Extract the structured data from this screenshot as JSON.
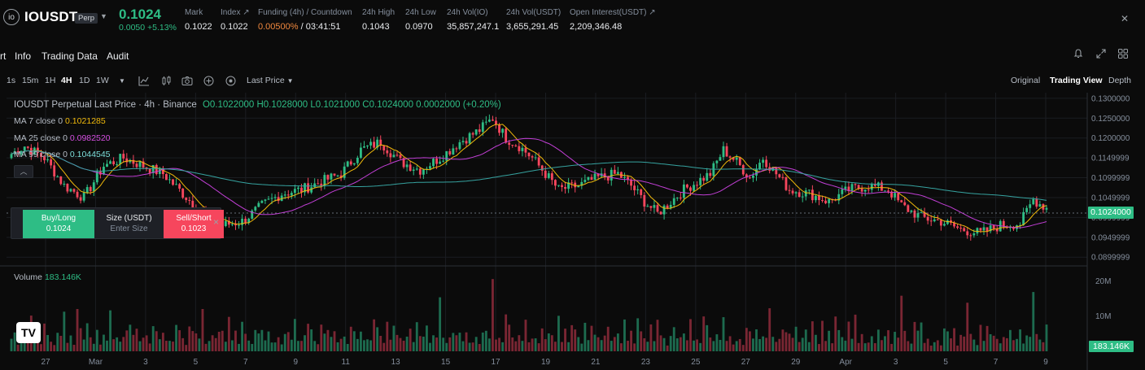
{
  "header": {
    "symbol": "IOUSDT",
    "badge": "Perp",
    "price": "0.1024",
    "change": "0.0050 +5.13%",
    "stats": [
      {
        "label": "Mark",
        "value": "0.1022"
      },
      {
        "label": "Index ↗",
        "value": "0.1022"
      },
      {
        "label": "Funding (4h) / Countdown",
        "value_rate": "0.00500%",
        "value_countdown": "/ 03:41:51"
      },
      {
        "label": "24h High",
        "value": "0.1043"
      },
      {
        "label": "24h Low",
        "value": "0.0970"
      },
      {
        "label": "24h Vol(IO)",
        "value": "35,857,247.1"
      },
      {
        "label": "24h Vol(USDT)",
        "value": "3,655,291.45"
      },
      {
        "label": "Open Interest(USDT) ↗",
        "value": "2,209,346.48"
      }
    ]
  },
  "tabs": [
    "rt",
    "Info",
    "Trading Data",
    "Audit"
  ],
  "toolbar": {
    "intervals": [
      "1s",
      "15m",
      "1H",
      "4H",
      "1D",
      "1W"
    ],
    "active_interval": "4H",
    "price_type": "Last Price",
    "views": [
      "Original",
      "Trading View",
      "Depth"
    ],
    "active_view": "Trading View"
  },
  "legend": {
    "title": "IOUSDT Perpetual Last Price · 4h · Binance",
    "ohlc": "O0.1022000 H0.1028000 L0.1021000 C0.1024000 0.0002000 (+0.20%)",
    "ma7_label": "MA 7 close 0",
    "ma7_value": "0.1021285",
    "ma25_label": "MA 25 close 0",
    "ma25_value": "0.0982520",
    "ma99_label": "MA 99 close 0",
    "ma99_value": "0.1044545",
    "volume_label": "Volume",
    "volume_value": "183.146K"
  },
  "order_panel": {
    "buy_label": "Buy/Long",
    "buy_price": "0.1024",
    "size_label": "Size (USDT)",
    "size_placeholder": "Enter Size",
    "sell_label": "Sell/Short",
    "sell_price": "0.1023",
    "close": "×"
  },
  "price_axis": [
    "0.1300000",
    "0.1250000",
    "0.1200000",
    "0.1149999",
    "0.1099999",
    "0.1049999",
    "0.0999999",
    "0.0949999",
    "0.0899999"
  ],
  "current_price_tag": "0.1024000",
  "volume_axis": [
    "20M",
    "10M"
  ],
  "volume_tag": "183.146K",
  "time_axis": [
    "27",
    "Mar",
    "3",
    "5",
    "7",
    "9",
    "11",
    "13",
    "15",
    "17",
    "19",
    "21",
    "23",
    "25",
    "27",
    "29",
    "Apr",
    "3",
    "5",
    "7",
    "9"
  ],
  "colors": {
    "up": "#2ebd85",
    "down": "#f6465d",
    "ma7": "#f0b90b",
    "ma25": "#c23fd6",
    "ma99": "#36a3a0"
  },
  "chart_data": {
    "type": "candlestick",
    "title": "IOUSDT Perpetual Last Price · 4h · Binance",
    "ylim": [
      0.088,
      0.131
    ],
    "anchors": [
      [
        0,
        0.116
      ],
      [
        4,
        0.118
      ],
      [
        10,
        0.115
      ],
      [
        16,
        0.108
      ],
      [
        22,
        0.105
      ],
      [
        28,
        0.113
      ],
      [
        34,
        0.115
      ],
      [
        40,
        0.113
      ],
      [
        46,
        0.111
      ],
      [
        52,
        0.106
      ],
      [
        58,
        0.101
      ],
      [
        64,
        0.098
      ],
      [
        70,
        0.099
      ],
      [
        76,
        0.103
      ],
      [
        82,
        0.106
      ],
      [
        88,
        0.107
      ],
      [
        94,
        0.109
      ],
      [
        100,
        0.111
      ],
      [
        106,
        0.117
      ],
      [
        112,
        0.119
      ],
      [
        118,
        0.114
      ],
      [
        124,
        0.112
      ],
      [
        130,
        0.115
      ],
      [
        136,
        0.119
      ],
      [
        142,
        0.122
      ],
      [
        146,
        0.125
      ],
      [
        150,
        0.12
      ],
      [
        154,
        0.118
      ],
      [
        158,
        0.115
      ],
      [
        162,
        0.111
      ],
      [
        166,
        0.107
      ],
      [
        172,
        0.108
      ],
      [
        178,
        0.11
      ],
      [
        184,
        0.111
      ],
      [
        188,
        0.108
      ],
      [
        192,
        0.104
      ],
      [
        196,
        0.101
      ],
      [
        200,
        0.104
      ],
      [
        204,
        0.107
      ],
      [
        208,
        0.109
      ],
      [
        212,
        0.111
      ],
      [
        216,
        0.117
      ],
      [
        220,
        0.114
      ],
      [
        224,
        0.11
      ],
      [
        228,
        0.115
      ],
      [
        232,
        0.111
      ],
      [
        236,
        0.107
      ],
      [
        242,
        0.106
      ],
      [
        248,
        0.104
      ],
      [
        254,
        0.107
      ],
      [
        260,
        0.108
      ],
      [
        266,
        0.107
      ],
      [
        270,
        0.103
      ],
      [
        276,
        0.1
      ],
      [
        282,
        0.099
      ],
      [
        288,
        0.097
      ],
      [
        294,
        0.096
      ],
      [
        300,
        0.098
      ],
      [
        306,
        0.0985
      ],
      [
        310,
        0.1045
      ],
      [
        314,
        0.1024
      ]
    ],
    "volumes_pattern": [
      3.5,
      5.0,
      2.8,
      6.5,
      4.2,
      3.1,
      7.8,
      2.5,
      4.9,
      3.3,
      12.1,
      5.5,
      3.8,
      2.9,
      6.1,
      4.4,
      8.3,
      3.6,
      5.2,
      2.7
    ]
  }
}
